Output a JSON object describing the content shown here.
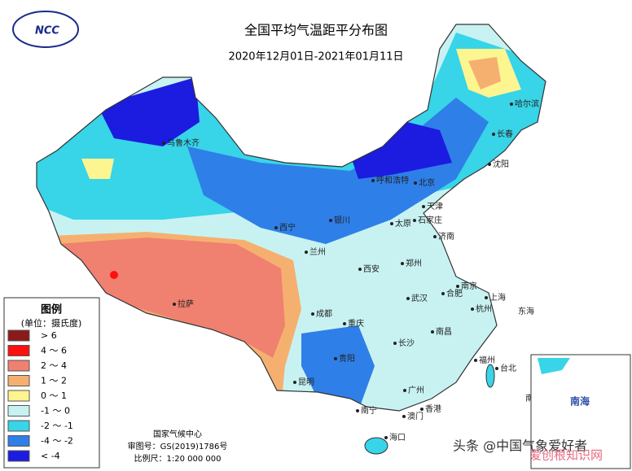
{
  "header": {
    "logo": "NCC",
    "title": "全国平均气温距平分布图",
    "subtitle": "2020年12月01日-2021年01月11日"
  },
  "legend": {
    "title": "图例",
    "unit": "(单位：摄氏度)",
    "items": [
      {
        "label": "> 6",
        "color": "#8b1a1a"
      },
      {
        "label": "4 ～ 6",
        "color": "#ff1010"
      },
      {
        "label": "2 ～ 4",
        "color": "#f08070"
      },
      {
        "label": "1 ～ 2",
        "color": "#f5b070"
      },
      {
        "label": "0 ～ 1",
        "color": "#fdf590"
      },
      {
        "label": "-1 ～ 0",
        "color": "#c8f2f2"
      },
      {
        "label": "-2 ～ -1",
        "color": "#38d4e8"
      },
      {
        "label": "-4 ～ -2",
        "color": "#2f7fe8"
      },
      {
        "label": "< -4",
        "color": "#1c1ce0"
      }
    ]
  },
  "cities": [
    "乌鲁木齐",
    "哈尔滨",
    "长春",
    "沈阳",
    "呼和浩特",
    "北京",
    "天津",
    "石家庄",
    "太原",
    "济南",
    "银川",
    "西宁",
    "兰州",
    "西安",
    "郑州",
    "南京",
    "合肥",
    "上海",
    "杭州",
    "武汉",
    "成都",
    "重庆",
    "长沙",
    "南昌",
    "福州",
    "台北",
    "贵阳",
    "昆明",
    "南宁",
    "广州",
    "香港",
    "澳门",
    "海口",
    "拉萨",
    "东海",
    "南海"
  ],
  "inset": {
    "label": "南海"
  },
  "footer": {
    "org": "国家气候中心",
    "approval": "审图号：GS(2019)1786号",
    "scale": "比例尺：1:20 000 000"
  },
  "watermark": {
    "source": "头条 @中国气象爱好者",
    "site": "爱创根知识网"
  }
}
